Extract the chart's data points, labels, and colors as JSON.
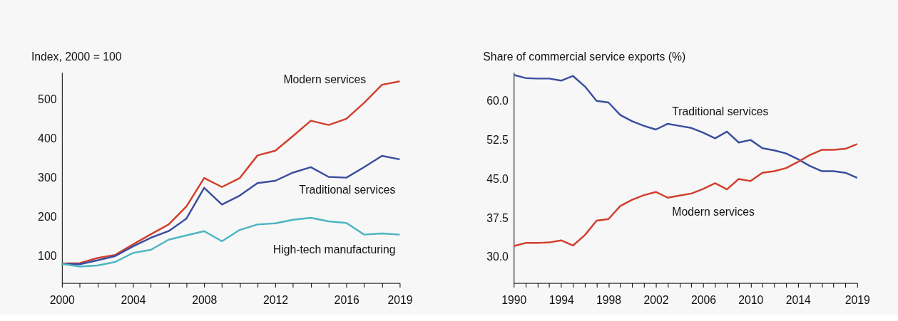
{
  "chart_data": [
    {
      "type": "line",
      "ylabel": "Index, 2000 = 100",
      "x": [
        2000,
        2001,
        2002,
        2003,
        2004,
        2005,
        2006,
        2007,
        2008,
        2009,
        2010,
        2011,
        2012,
        2013,
        2014,
        2015,
        2016,
        2017,
        2018,
        2019
      ],
      "xlim": [
        2000,
        2019
      ],
      "xticks": [
        2000,
        {
          "value": 2001,
          "label": null
        },
        {
          "value": 2002,
          "label": null
        },
        {
          "value": 2003,
          "label": null
        },
        2004,
        {
          "value": 2005,
          "label": null
        },
        {
          "value": 2006,
          "label": null
        },
        {
          "value": 2007,
          "label": null
        },
        2008,
        {
          "value": 2009,
          "label": null
        },
        {
          "value": 2010,
          "label": null
        },
        {
          "value": 2011,
          "label": null
        },
        2012,
        {
          "value": 2013,
          "label": null
        },
        {
          "value": 2014,
          "label": null
        },
        {
          "value": 2015,
          "label": null
        },
        2016,
        {
          "value": 2017,
          "label": null
        },
        {
          "value": 2018,
          "label": null
        },
        2019
      ],
      "ylim": [
        30,
        570
      ],
      "yticks": [
        100,
        200,
        300,
        400,
        500
      ],
      "series": [
        {
          "name": "Modern services",
          "color": "#d13f2e",
          "values": [
            80,
            81,
            94,
            102,
            129,
            155,
            180,
            226,
            299,
            276,
            299,
            357,
            369,
            407,
            446,
            435,
            451,
            492,
            538,
            547
          ]
        },
        {
          "name": "Traditional services",
          "color": "#3a4e9e",
          "values": [
            79,
            78,
            88,
            99,
            124,
            146,
            163,
            195,
            274,
            231,
            254,
            286,
            292,
            313,
            327,
            302,
            300,
            327,
            356,
            347
          ]
        },
        {
          "name": "High-tech manufacturing",
          "color": "#4bb5c1",
          "values": [
            79,
            72,
            75,
            84,
            107,
            115,
            141,
            152,
            163,
            137,
            166,
            180,
            183,
            192,
            197,
            188,
            184,
            154,
            157,
            154
          ]
        }
      ]
    },
    {
      "type": "line",
      "ylabel": "Share of commercial service exports (%)",
      "x": [
        1990,
        1991,
        1992,
        1993,
        1994,
        1995,
        1996,
        1997,
        1998,
        1999,
        2000,
        2001,
        2002,
        2003,
        2004,
        2005,
        2006,
        2007,
        2008,
        2009,
        2010,
        2011,
        2012,
        2013,
        2014,
        2015,
        2016,
        2017,
        2018,
        2019
      ],
      "xlim": [
        1990,
        2019
      ],
      "xticks": [
        1990,
        {
          "value": 1991,
          "label": null
        },
        {
          "value": 1992,
          "label": null
        },
        {
          "value": 1993,
          "label": null
        },
        1994,
        {
          "value": 1995,
          "label": null
        },
        {
          "value": 1996,
          "label": null
        },
        {
          "value": 1997,
          "label": null
        },
        1998,
        {
          "value": 1999,
          "label": null
        },
        {
          "value": 2000,
          "label": null
        },
        {
          "value": 2001,
          "label": null
        },
        2002,
        {
          "value": 2003,
          "label": null
        },
        {
          "value": 2004,
          "label": null
        },
        {
          "value": 2005,
          "label": null
        },
        2006,
        {
          "value": 2007,
          "label": null
        },
        {
          "value": 2008,
          "label": null
        },
        {
          "value": 2009,
          "label": null
        },
        2010,
        {
          "value": 2011,
          "label": null
        },
        {
          "value": 2012,
          "label": null
        },
        {
          "value": 2013,
          "label": null
        },
        2014,
        {
          "value": 2015,
          "label": null
        },
        {
          "value": 2016,
          "label": null
        },
        {
          "value": 2017,
          "label": null
        },
        {
          "value": 2018,
          "label": null
        },
        2019
      ],
      "ylim": [
        25,
        65.5
      ],
      "yticks": [
        {
          "value": 30,
          "label": "30.0"
        },
        {
          "value": 37.5,
          "label": "37.5"
        },
        {
          "value": 45,
          "label": "45.0"
        },
        {
          "value": 52.5,
          "label": "52.5"
        },
        {
          "value": 60,
          "label": "60.0"
        }
      ],
      "series": [
        {
          "name": "Traditional services",
          "color": "#3a4e9e",
          "values": [
            65.0,
            64.4,
            64.3,
            64.3,
            63.9,
            64.8,
            62.8,
            60.0,
            59.7,
            57.3,
            56.1,
            55.2,
            54.5,
            55.6,
            55.2,
            54.8,
            53.9,
            52.8,
            54.1,
            52.0,
            52.5,
            50.9,
            50.5,
            49.9,
            48.8,
            47.5,
            46.5,
            46.5,
            46.2,
            45.2
          ]
        },
        {
          "name": "Modern services",
          "color": "#d13f2e",
          "values": [
            32.1,
            32.7,
            32.7,
            32.8,
            33.2,
            32.2,
            34.2,
            37.0,
            37.3,
            39.8,
            41.0,
            41.9,
            42.5,
            41.4,
            41.8,
            42.2,
            43.1,
            44.2,
            43.0,
            45.0,
            44.6,
            46.2,
            46.5,
            47.1,
            48.3,
            49.6,
            50.6,
            50.6,
            50.8,
            51.7
          ]
        }
      ]
    }
  ]
}
